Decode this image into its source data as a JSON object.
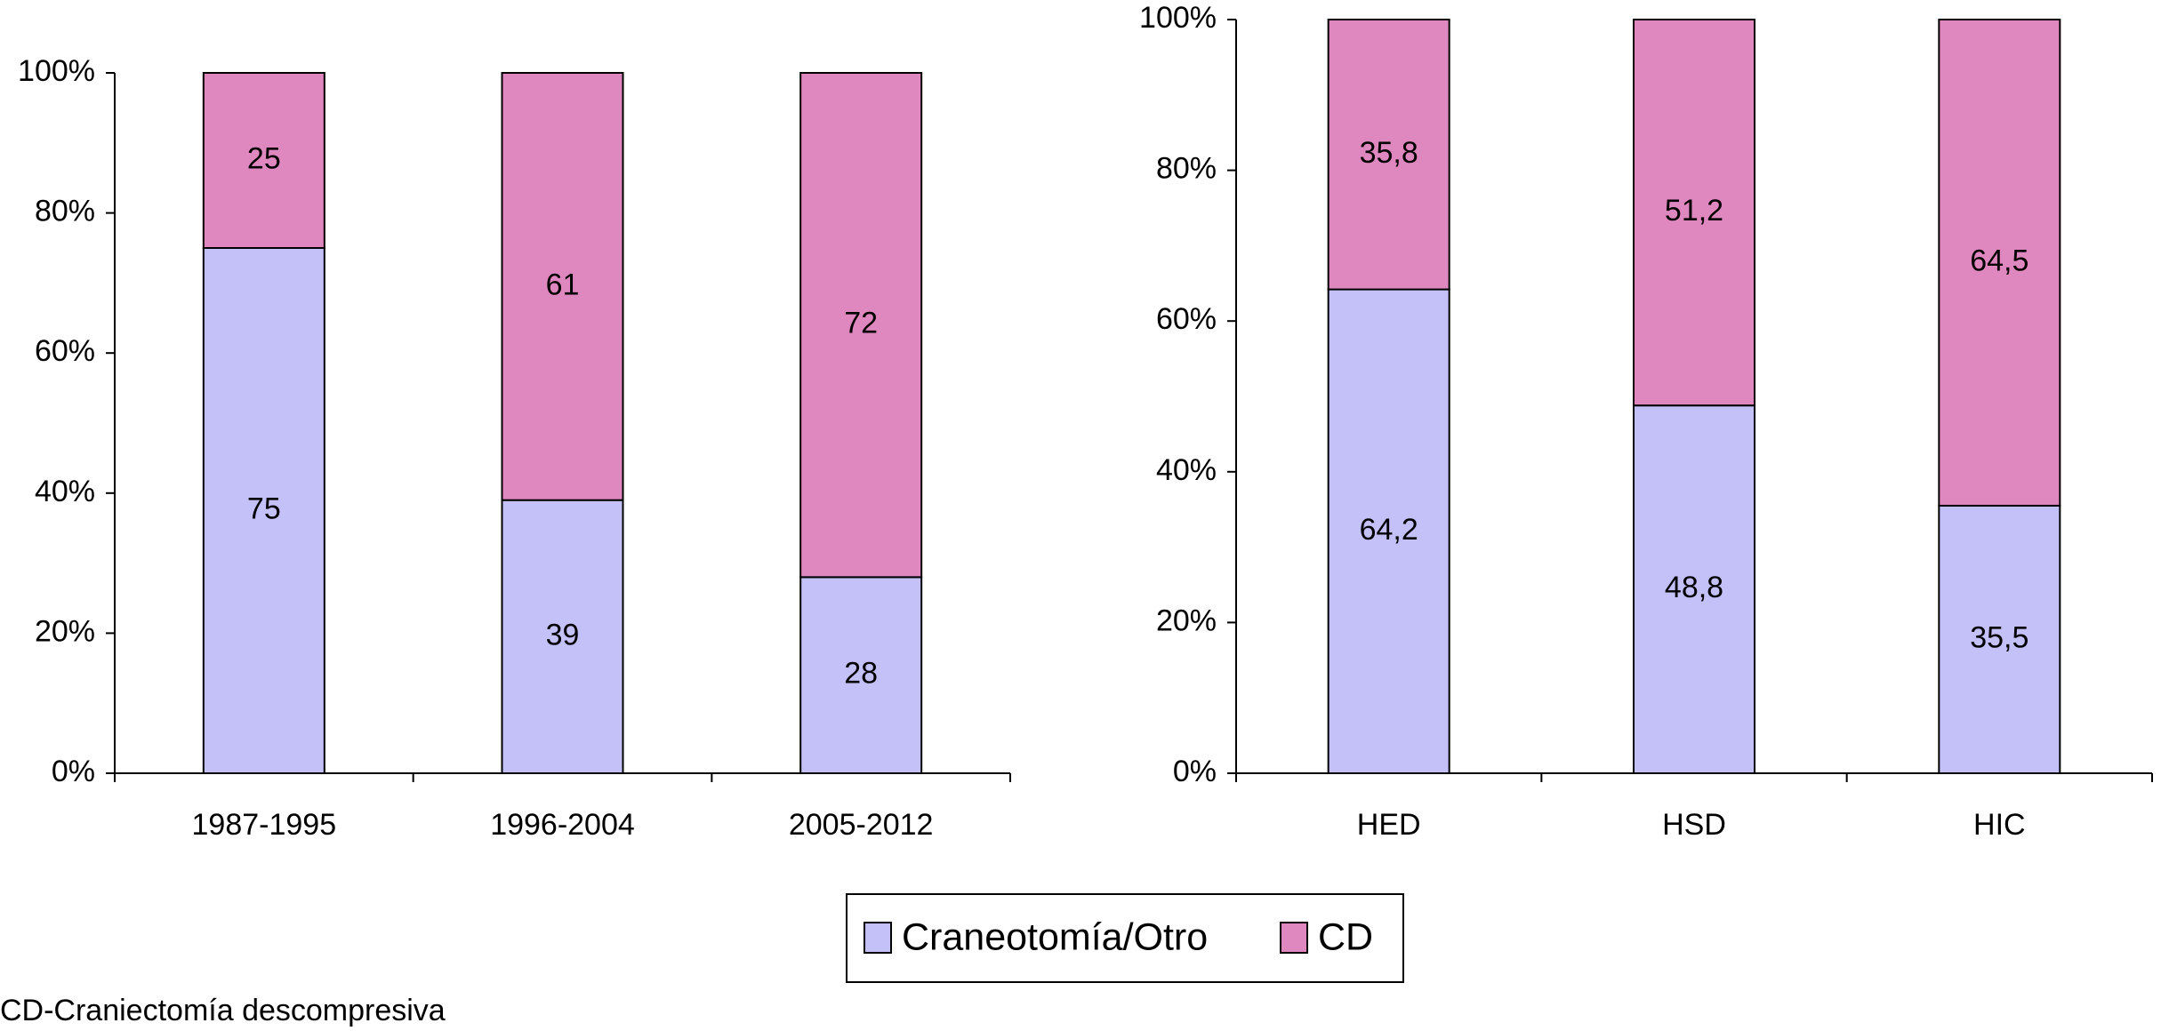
{
  "chart_data": [
    {
      "type": "stacked_bar",
      "categories": [
        "1987-1995",
        "1996-2004",
        "2005-2012"
      ],
      "series": [
        {
          "name": "Craneotomía/Otro",
          "color": "#c4c0f8",
          "values": [
            75,
            39,
            28
          ]
        },
        {
          "name": "CD",
          "color": "#df88c0",
          "values": [
            25,
            61,
            72
          ]
        }
      ],
      "ylim": [
        0,
        100
      ],
      "yticks": [
        {
          "value": 0,
          "label": "0%"
        },
        {
          "value": 20,
          "label": "20%"
        },
        {
          "value": 40,
          "label": "40%"
        },
        {
          "value": 60,
          "label": "60%"
        },
        {
          "value": 80,
          "label": "80%"
        },
        {
          "value": 100,
          "label": "100%"
        }
      ]
    },
    {
      "type": "stacked_bar",
      "categories": [
        "HED",
        "HSD",
        "HIC"
      ],
      "series": [
        {
          "color": "#c4c0f8",
          "values": [
            64.2,
            48.8,
            35.5
          ],
          "value_labels": [
            "64,2",
            "48,8",
            "35,5"
          ]
        },
        {
          "color": "#df88c0",
          "values": [
            35.8,
            51.2,
            64.5
          ],
          "value_labels": [
            "35,8",
            "51,2",
            "64,5"
          ]
        }
      ],
      "ylim": [
        0,
        100
      ],
      "yticks": [
        {
          "value": 0,
          "label": "0%"
        },
        {
          "value": 20,
          "label": "20%"
        },
        {
          "value": 40,
          "label": "40%"
        },
        {
          "value": 60,
          "label": "60%"
        },
        {
          "value": 80,
          "label": "80%"
        },
        {
          "value": 100,
          "label": "100%"
        }
      ]
    }
  ],
  "footnote": "CD-Craniectomía descompresiva"
}
